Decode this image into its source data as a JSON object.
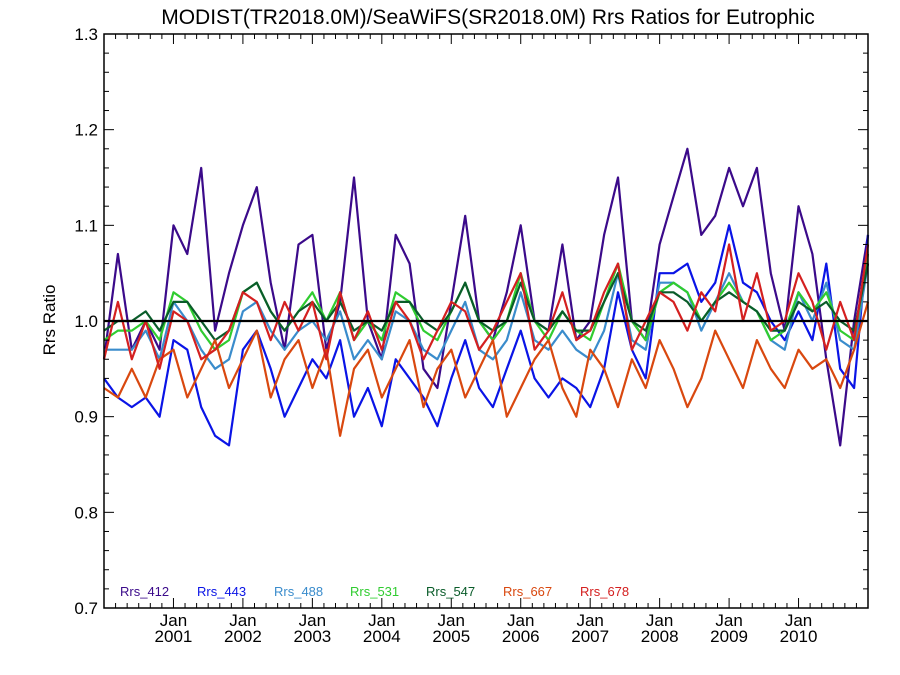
{
  "chart_data": {
    "type": "line",
    "title": "MODIST(TR2018.0M)/SeaWiFS(SR2018.0M)  Rrs Ratios for Eutrophic",
    "xlabel": "",
    "ylabel": "Rrs Ratio",
    "xlim": [
      2000.0,
      2011.0
    ],
    "ylim": [
      0.7,
      1.3
    ],
    "y_ticks": [
      0.7,
      0.8,
      0.9,
      1.0,
      1.1,
      1.2,
      1.3
    ],
    "y_tick_labels": [
      "0.7",
      "0.8",
      "0.9",
      "1.0",
      "1.1",
      "1.2",
      "1.3"
    ],
    "x_ticks": [
      2001.0,
      2002.0,
      2003.0,
      2004.0,
      2005.0,
      2006.0,
      2007.0,
      2008.0,
      2009.0,
      2010.0
    ],
    "x_tick_labels": [
      [
        "Jan",
        "2001"
      ],
      [
        "Jan",
        "2002"
      ],
      [
        "Jan",
        "2003"
      ],
      [
        "Jan",
        "2004"
      ],
      [
        "Jan",
        "2005"
      ],
      [
        "Jan",
        "2006"
      ],
      [
        "Jan",
        "2007"
      ],
      [
        "Jan",
        "2008"
      ],
      [
        "Jan",
        "2009"
      ],
      [
        "Jan",
        "2010"
      ]
    ],
    "grid": false,
    "legend_position": "bottom-left",
    "reference_line": 1.0,
    "x": [
      2000.0,
      2000.2,
      2000.4,
      2000.6,
      2000.8,
      2001.0,
      2001.2,
      2001.4,
      2001.6,
      2001.8,
      2002.0,
      2002.2,
      2002.4,
      2002.6,
      2002.8,
      2003.0,
      2003.2,
      2003.4,
      2003.6,
      2003.8,
      2004.0,
      2004.2,
      2004.4,
      2004.6,
      2004.8,
      2005.0,
      2005.2,
      2005.4,
      2005.6,
      2005.8,
      2006.0,
      2006.2,
      2006.4,
      2006.6,
      2006.8,
      2007.0,
      2007.2,
      2007.4,
      2007.6,
      2007.8,
      2008.0,
      2008.2,
      2008.4,
      2008.6,
      2008.8,
      2009.0,
      2009.2,
      2009.4,
      2009.6,
      2009.8,
      2010.0,
      2010.2,
      2010.4,
      2010.6,
      2010.8,
      2011.0
    ],
    "series": [
      {
        "name": "Rrs_412",
        "color": "#3b0a8a",
        "values": [
          0.96,
          1.07,
          0.97,
          1.0,
          0.97,
          1.1,
          1.07,
          1.16,
          0.99,
          1.05,
          1.1,
          1.14,
          1.04,
          0.97,
          1.08,
          1.09,
          0.97,
          1.02,
          1.15,
          1.0,
          0.96,
          1.09,
          1.06,
          0.95,
          0.93,
          1.02,
          1.11,
          1.0,
          0.98,
          1.03,
          1.1,
          1.0,
          0.99,
          1.08,
          0.98,
          1.0,
          1.09,
          1.15,
          1.0,
          0.98,
          1.08,
          1.13,
          1.18,
          1.09,
          1.11,
          1.16,
          1.12,
          1.16,
          1.05,
          0.99,
          1.12,
          1.07,
          0.96,
          0.87,
          1.0,
          1.09
        ]
      },
      {
        "name": "Rrs_443",
        "color": "#0a14e6",
        "values": [
          0.94,
          0.92,
          0.91,
          0.92,
          0.9,
          0.98,
          0.97,
          0.91,
          0.88,
          0.87,
          0.97,
          0.99,
          0.95,
          0.9,
          0.93,
          0.96,
          0.94,
          0.98,
          0.9,
          0.93,
          0.89,
          0.96,
          0.94,
          0.92,
          0.89,
          0.94,
          0.98,
          0.93,
          0.91,
          0.95,
          0.99,
          0.94,
          0.92,
          0.94,
          0.93,
          0.91,
          0.95,
          1.03,
          0.97,
          0.94,
          1.05,
          1.05,
          1.06,
          1.02,
          1.04,
          1.1,
          1.04,
          1.03,
          1.0,
          0.98,
          1.01,
          0.98,
          1.06,
          0.95,
          0.93,
          1.09
        ]
      },
      {
        "name": "Rrs_488",
        "color": "#3a8ccc",
        "values": [
          0.97,
          0.97,
          0.97,
          0.99,
          0.96,
          1.02,
          1.0,
          0.97,
          0.95,
          0.96,
          1.01,
          1.02,
          0.99,
          0.97,
          0.99,
          1.0,
          0.98,
          1.01,
          0.96,
          0.98,
          0.96,
          1.01,
          1.0,
          0.97,
          0.96,
          0.99,
          1.02,
          0.97,
          0.96,
          0.98,
          1.03,
          0.98,
          0.97,
          0.99,
          0.97,
          0.96,
          0.99,
          1.05,
          0.98,
          0.97,
          1.04,
          1.04,
          1.03,
          0.99,
          1.02,
          1.05,
          1.02,
          1.01,
          0.98,
          0.97,
          1.03,
          1.0,
          1.04,
          0.98,
          0.97,
          1.06
        ]
      },
      {
        "name": "Rrs_531",
        "color": "#30cc30",
        "values": [
          0.98,
          0.99,
          0.99,
          1.0,
          0.98,
          1.03,
          1.02,
          0.99,
          0.97,
          0.98,
          1.03,
          1.04,
          1.01,
          0.99,
          1.01,
          1.03,
          1.0,
          1.03,
          0.98,
          1.0,
          0.98,
          1.03,
          1.02,
          0.99,
          0.98,
          1.01,
          1.04,
          1.0,
          0.98,
          1.0,
          1.05,
          1.0,
          0.98,
          1.01,
          0.99,
          0.98,
          1.02,
          1.06,
          1.0,
          0.98,
          1.03,
          1.04,
          1.03,
          1.0,
          1.02,
          1.04,
          1.02,
          1.01,
          0.98,
          0.99,
          1.03,
          1.01,
          1.03,
          0.99,
          0.98,
          1.07
        ]
      },
      {
        "name": "Rrs_547",
        "color": "#0a5c2a",
        "values": [
          0.99,
          1.0,
          1.0,
          1.01,
          0.99,
          1.02,
          1.02,
          1.0,
          0.98,
          0.99,
          1.03,
          1.04,
          1.01,
          0.99,
          1.01,
          1.02,
          1.0,
          1.02,
          0.99,
          1.0,
          0.99,
          1.02,
          1.02,
          1.0,
          0.99,
          1.01,
          1.04,
          1.0,
          0.99,
          1.0,
          1.04,
          1.0,
          0.99,
          1.01,
          0.99,
          0.99,
          1.02,
          1.05,
          1.0,
          0.99,
          1.03,
          1.03,
          1.02,
          1.0,
          1.02,
          1.03,
          1.02,
          1.01,
          0.99,
          0.99,
          1.02,
          1.01,
          1.02,
          1.0,
          0.99,
          1.06
        ]
      },
      {
        "name": "Rrs_667",
        "color": "#d9480f",
        "values": [
          0.93,
          0.92,
          0.95,
          0.92,
          0.96,
          0.97,
          0.92,
          0.95,
          0.98,
          0.93,
          0.96,
          0.99,
          0.92,
          0.96,
          0.98,
          0.93,
          0.97,
          0.88,
          0.95,
          0.97,
          0.92,
          0.95,
          0.98,
          0.91,
          0.95,
          0.97,
          0.92,
          0.95,
          0.98,
          0.9,
          0.93,
          0.96,
          0.98,
          0.93,
          0.9,
          0.97,
          0.95,
          0.91,
          0.96,
          0.93,
          0.98,
          0.95,
          0.91,
          0.94,
          0.99,
          0.96,
          0.93,
          0.98,
          0.95,
          0.93,
          0.97,
          0.95,
          0.96,
          0.93,
          0.97,
          1.02
        ]
      },
      {
        "name": "Rrs_678",
        "color": "#d42020",
        "values": [
          0.96,
          1.02,
          0.96,
          1.0,
          0.95,
          1.01,
          1.0,
          0.96,
          0.97,
          0.99,
          1.03,
          1.02,
          0.98,
          1.02,
          0.99,
          1.02,
          0.96,
          1.03,
          0.98,
          1.01,
          0.97,
          1.02,
          1.0,
          0.96,
          0.99,
          1.02,
          1.01,
          0.97,
          0.99,
          1.02,
          1.05,
          0.97,
          0.99,
          1.03,
          0.98,
          0.99,
          1.03,
          1.06,
          0.97,
          1.0,
          1.03,
          1.02,
          0.99,
          1.03,
          1.01,
          1.08,
          1.0,
          1.05,
          0.99,
          1.0,
          1.05,
          1.02,
          0.97,
          1.02,
          0.98,
          1.08
        ]
      }
    ]
  }
}
